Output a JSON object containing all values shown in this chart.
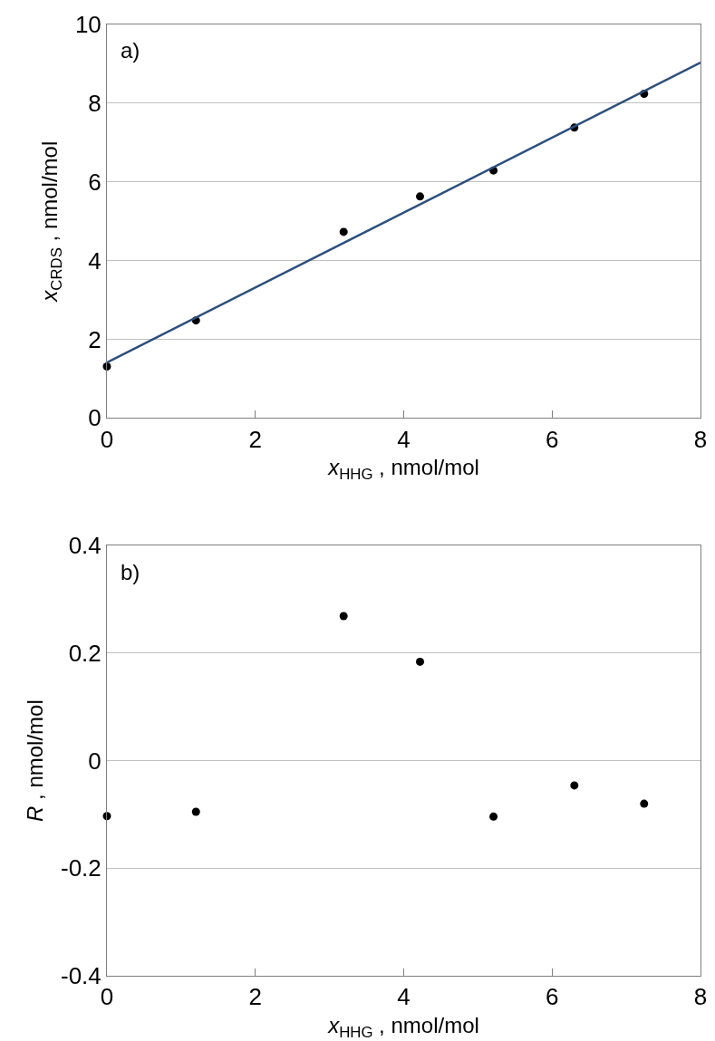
{
  "chart_data": [
    {
      "type": "scatter",
      "xlabel": "x$_{HHG}$ , nmol/mol",
      "ylabel": "x$_{CRDS}$ , nmol/mol",
      "annotations": [
        "a)"
      ],
      "x": [
        0,
        1.2,
        3.19,
        4.22,
        5.21,
        6.3,
        7.24
      ],
      "series": [
        {
          "color": "#000000",
          "values": [
            1.31,
            2.48,
            4.73,
            5.63,
            6.29,
            7.38,
            8.24
          ]
        },
        {
          "type": "line",
          "color": "#2c4f7c",
          "x": [
            0,
            8
          ],
          "values": [
            1.41,
            9.03
          ],
          "marker": "none"
        }
      ],
      "xlim": [
        0,
        8
      ],
      "xticks": [
        0,
        2,
        4,
        6,
        8
      ],
      "ylim": [
        0,
        10
      ],
      "yticks": [
        0,
        2,
        4,
        6,
        8,
        10
      ],
      "grid": "y",
      "marker": "circle"
    },
    {
      "type": "scatter",
      "xlabel": "x$_{HHG}$ , nmol/mol",
      "ylabel": "R , nmol/mol",
      "annotations": [
        "b)"
      ],
      "x": [
        0,
        1.2,
        3.19,
        4.22,
        5.21,
        6.3,
        7.24
      ],
      "series": [
        {
          "color": "#000000",
          "values": [
            -0.103,
            -0.095,
            0.269,
            0.184,
            -0.104,
            -0.046,
            -0.08
          ]
        }
      ],
      "xlim": [
        0,
        8
      ],
      "xticks": [
        0,
        2,
        4,
        6,
        8
      ],
      "ylim": [
        -0.4,
        0.4
      ],
      "yticks": [
        -0.4,
        -0.2,
        0,
        0.2,
        0.4
      ],
      "grid": "y",
      "marker": "circle"
    }
  ]
}
